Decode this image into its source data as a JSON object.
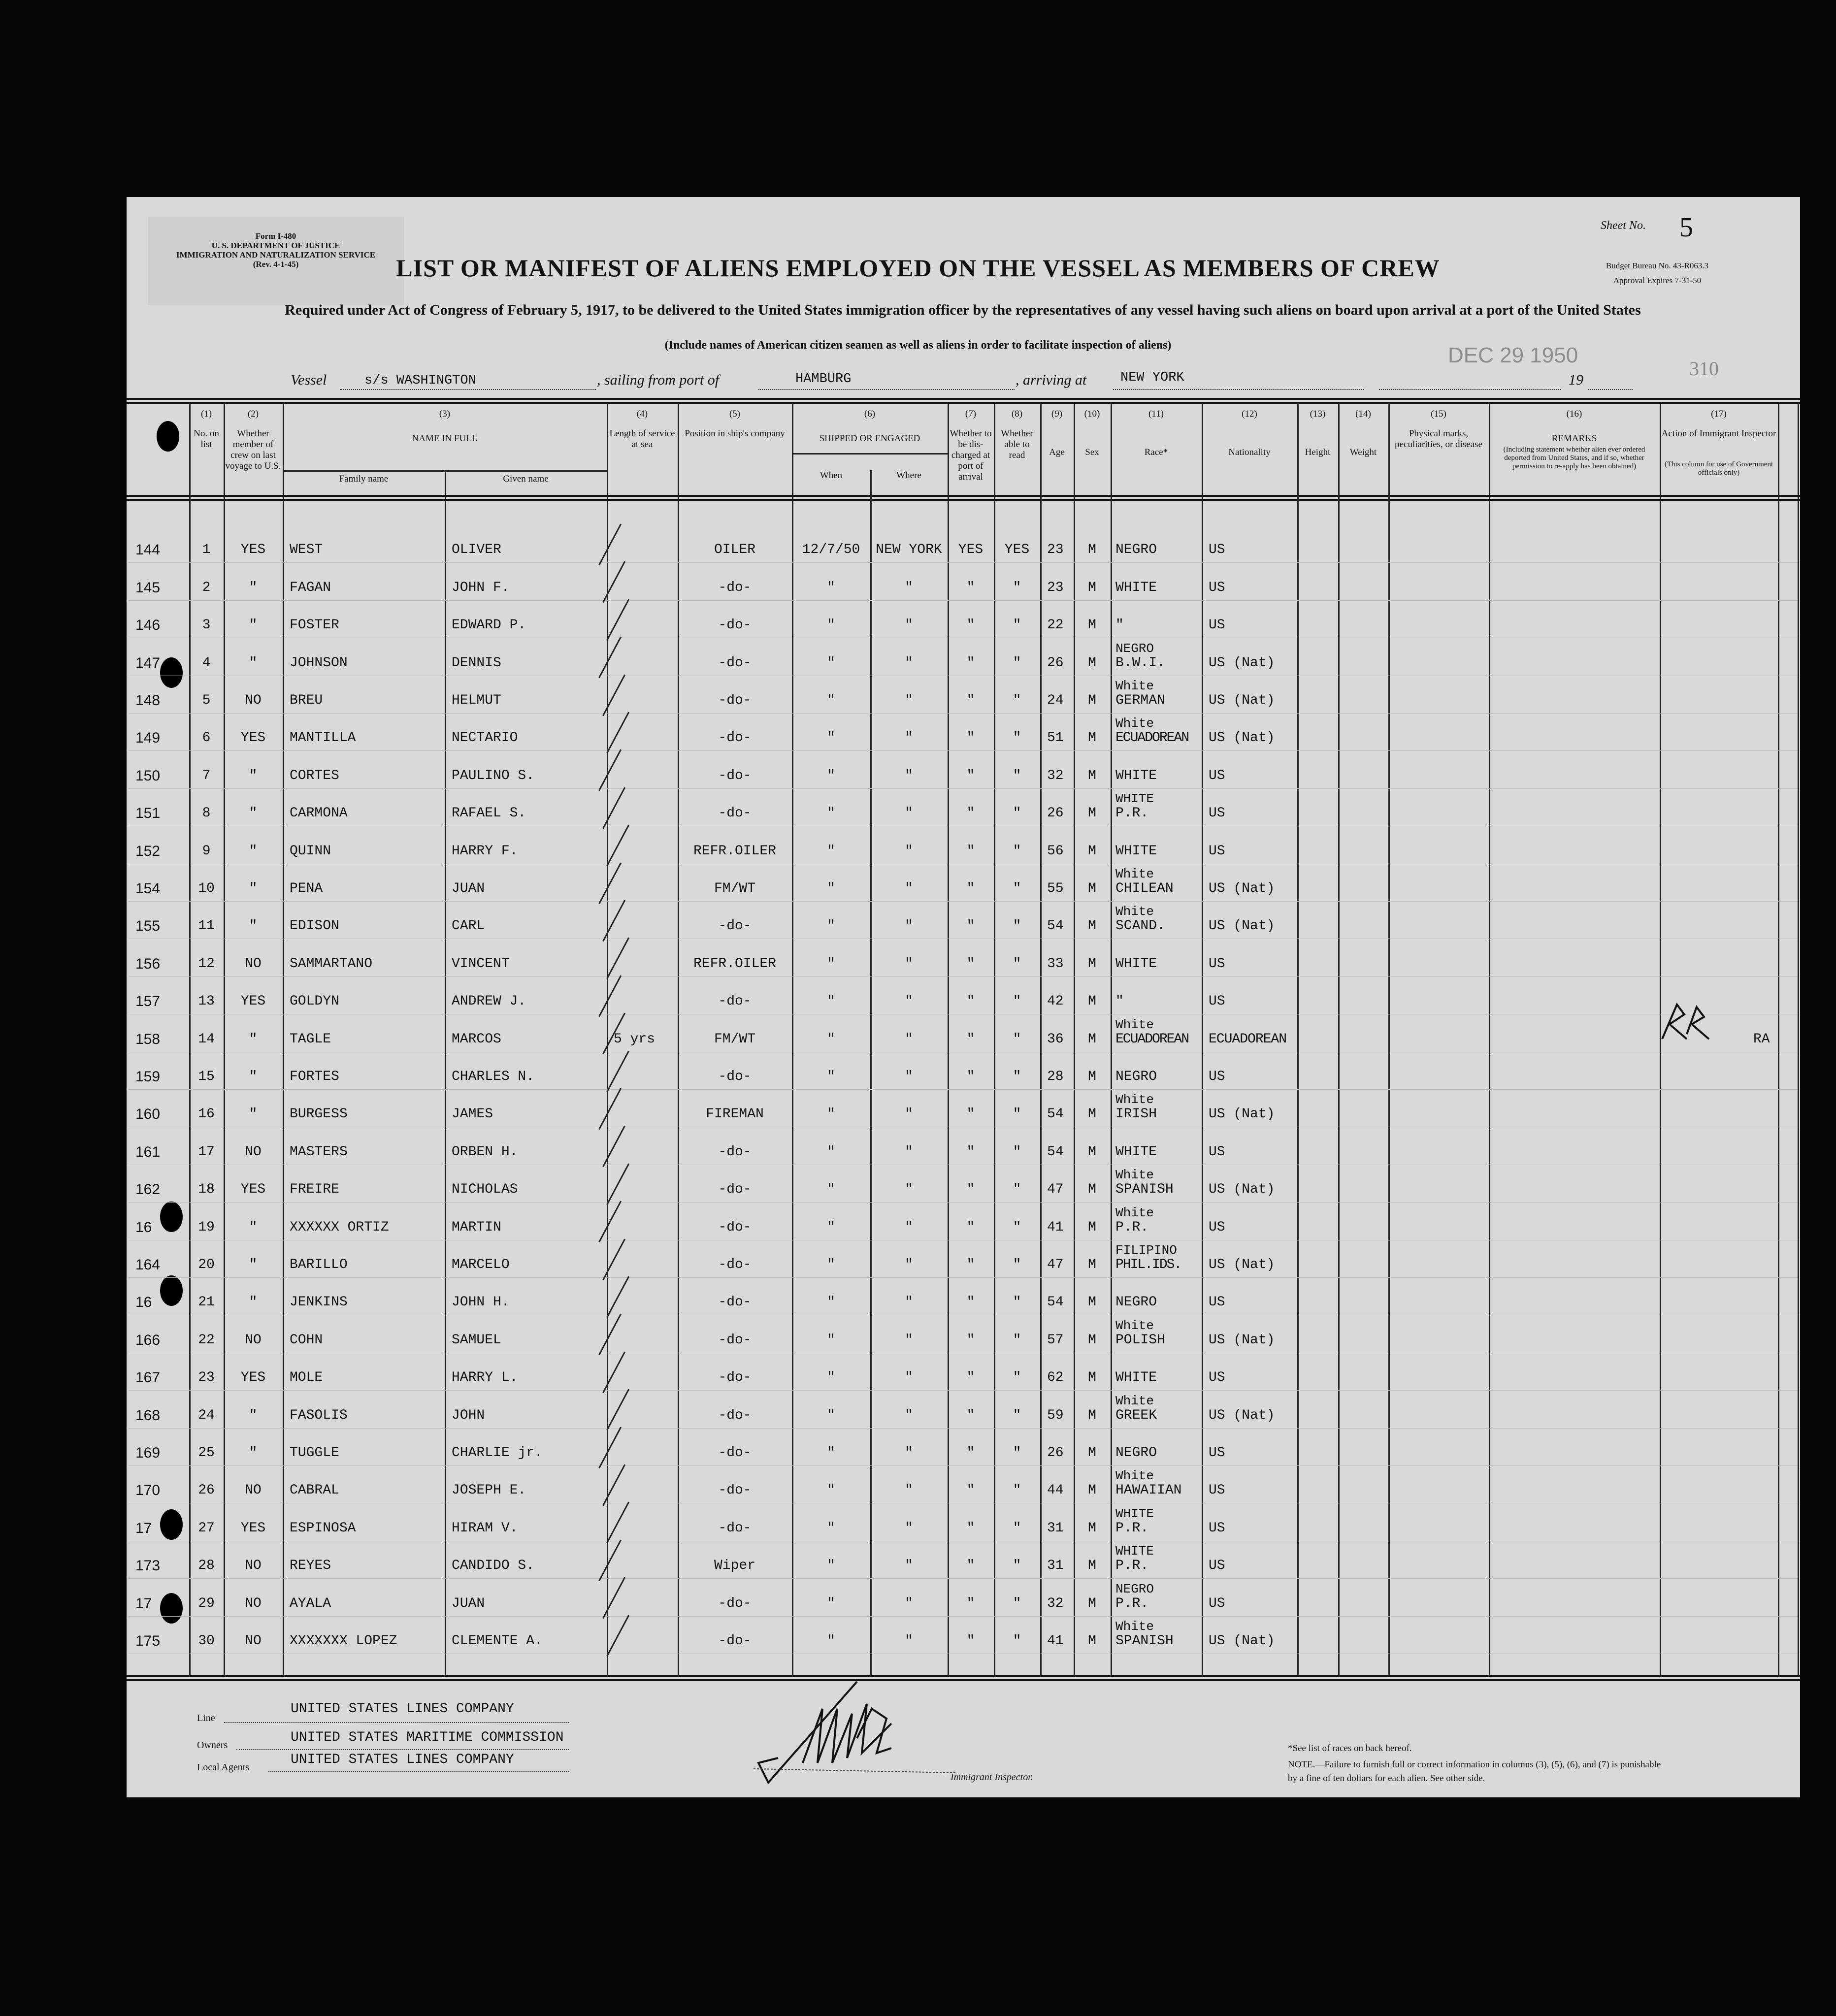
{
  "form": {
    "form_id_lines": [
      "Form I-480",
      "U. S. DEPARTMENT OF JUSTICE",
      "IMMIGRATION AND NATURALIZATION SERVICE",
      "(Rev. 4-1-45)"
    ],
    "title": "LIST OR MANIFEST OF ALIENS EMPLOYED ON THE VESSEL AS MEMBERS OF CREW",
    "subtitle": "Required under Act of Congress of February 5, 1917, to be delivered to the United States immigration officer by the representatives of any vessel having such aliens on board upon arrival at a port of the United States",
    "note": "(Include names of American citizen seamen as well as aliens in order to facilitate inspection of aliens)",
    "sheet_label": "Sheet No.",
    "sheet_no": "5",
    "budget_bureau": "Budget Bureau No. 43-R063.3",
    "approval": "Approval Expires 7-31-50",
    "date_stamp": "DEC 29 1950",
    "stamp_number": "310"
  },
  "vessel": {
    "vessel_label": "Vessel",
    "vessel_name": "s/s WASHINGTON",
    "sailing_label": ", sailing from port of",
    "port_from": "HAMBURG",
    "arriving_label": ", arriving at",
    "port_to": "NEW YORK",
    "year_label": "19"
  },
  "columns": {
    "numbers": [
      "(1)",
      "(2)",
      "(3)",
      "(4)",
      "(5)",
      "(6)",
      "(7)",
      "(8)",
      "(9)",
      "(10)",
      "(11)",
      "(12)",
      "(13)",
      "(14)",
      "(15)",
      "(16)",
      "(17)"
    ],
    "no_on_list": "No. on list",
    "member_last_voyage": "Whether member of crew on last voyage to U.S.",
    "name_in_full": "NAME IN FULL",
    "family_name": "Family name",
    "given_name": "Given name",
    "length_service": "Length of service at sea",
    "position": "Position in ship's company",
    "shipped": "SHIPPED OR ENGAGED",
    "when": "When",
    "where": "Where",
    "discharged": "Whether to be dis-charged at port of arrival",
    "able_read": "Whether able to read",
    "age": "Age",
    "sex": "Sex",
    "race": "Race*",
    "nationality": "Nationality",
    "height": "Height",
    "weight": "Weight",
    "physical": "Physical marks, peculiarities, or disease",
    "remarks_title": "REMARKS",
    "remarks_sub": "(Including statement whether alien ever ordered deported from United States, and if so, whether permission to re-apply has been obtained)",
    "action_title": "Action of Immigrant Inspector",
    "action_sub": "(This column for use of Government officials only)"
  },
  "rows": [
    {
      "sheet": "144",
      "no": "1",
      "member": "YES",
      "family": "WEST",
      "given": "OLIVER",
      "length": "",
      "position": "OILER",
      "when": "12/7/50",
      "where": "NEW YORK",
      "disch": "YES",
      "read": "YES",
      "age": "23",
      "sex": "M",
      "race1": "",
      "race2": "NEGRO",
      "nat": "US",
      "action": ""
    },
    {
      "sheet": "145",
      "no": "2",
      "member": "\"",
      "family": "FAGAN",
      "given": "JOHN F.",
      "length": "",
      "position": "-do-",
      "when": "\"",
      "where": "\"",
      "disch": "\"",
      "read": "\"",
      "age": "23",
      "sex": "M",
      "race1": "",
      "race2": "WHITE",
      "nat": "US",
      "action": ""
    },
    {
      "sheet": "146",
      "no": "3",
      "member": "\"",
      "family": "FOSTER",
      "given": "EDWARD P.",
      "length": "",
      "position": "-do-",
      "when": "\"",
      "where": "\"",
      "disch": "\"",
      "read": "\"",
      "age": "22",
      "sex": "M",
      "race1": "",
      "race2": "\"",
      "nat": "US",
      "action": ""
    },
    {
      "sheet": "147",
      "no": "4",
      "member": "\"",
      "family": "JOHNSON",
      "given": "DENNIS",
      "length": "",
      "position": "-do-",
      "when": "\"",
      "where": "\"",
      "disch": "\"",
      "read": "\"",
      "age": "26",
      "sex": "M",
      "race1": "NEGRO",
      "race2": "B.W.I.",
      "nat": "US (Nat)",
      "action": ""
    },
    {
      "sheet": "148",
      "no": "5",
      "member": "NO",
      "family": "BREU",
      "given": "HELMUT",
      "length": "",
      "position": "-do-",
      "when": "\"",
      "where": "\"",
      "disch": "\"",
      "read": "\"",
      "age": "24",
      "sex": "M",
      "race1": "White",
      "race2": "GERMAN",
      "nat": "US (Nat)",
      "action": ""
    },
    {
      "sheet": "149",
      "no": "6",
      "member": "YES",
      "family": "MANTILLA",
      "given": "NECTARIO",
      "length": "",
      "position": "-do-",
      "when": "\"",
      "where": "\"",
      "disch": "\"",
      "read": "\"",
      "age": "51",
      "sex": "M",
      "race1": "White",
      "race2": "ECUADOREAN",
      "nat": "US (Nat)",
      "action": ""
    },
    {
      "sheet": "150",
      "no": "7",
      "member": "\"",
      "family": "CORTES",
      "given": "PAULINO S.",
      "length": "",
      "position": "-do-",
      "when": "\"",
      "where": "\"",
      "disch": "\"",
      "read": "\"",
      "age": "32",
      "sex": "M",
      "race1": "",
      "race2": "WHITE",
      "nat": "US",
      "action": ""
    },
    {
      "sheet": "151",
      "no": "8",
      "member": "\"",
      "family": "CARMONA",
      "given": "RAFAEL S.",
      "length": "",
      "position": "-do-",
      "when": "\"",
      "where": "\"",
      "disch": "\"",
      "read": "\"",
      "age": "26",
      "sex": "M",
      "race1": "WHITE",
      "race2": "P.R.",
      "nat": "US",
      "action": ""
    },
    {
      "sheet": "152",
      "no": "9",
      "member": "\"",
      "family": "QUINN",
      "given": "HARRY F.",
      "length": "",
      "position": "REFR.OILER",
      "when": "\"",
      "where": "\"",
      "disch": "\"",
      "read": "\"",
      "age": "56",
      "sex": "M",
      "race1": "",
      "race2": "WHITE",
      "nat": "US",
      "action": ""
    },
    {
      "sheet": "154",
      "no": "10",
      "member": "\"",
      "family": "PENA",
      "given": "JUAN",
      "length": "",
      "position": "FM/WT",
      "when": "\"",
      "where": "\"",
      "disch": "\"",
      "read": "\"",
      "age": "55",
      "sex": "M",
      "race1": "White",
      "race2": "CHILEAN",
      "nat": "US (Nat)",
      "action": ""
    },
    {
      "sheet": "155",
      "no": "11",
      "member": "\"",
      "family": "EDISON",
      "given": "CARL",
      "length": "",
      "position": "-do-",
      "when": "\"",
      "where": "\"",
      "disch": "\"",
      "read": "\"",
      "age": "54",
      "sex": "M",
      "race1": "White",
      "race2": "SCAND.",
      "nat": "US (Nat)",
      "action": ""
    },
    {
      "sheet": "156",
      "no": "12",
      "member": "NO",
      "family": "SAMMARTANO",
      "given": "VINCENT",
      "length": "",
      "position": "REFR.OILER",
      "when": "\"",
      "where": "\"",
      "disch": "\"",
      "read": "\"",
      "age": "33",
      "sex": "M",
      "race1": "",
      "race2": "WHITE",
      "nat": "US",
      "action": ""
    },
    {
      "sheet": "157",
      "no": "13",
      "member": "YES",
      "family": "GOLDYN",
      "given": "ANDREW J.",
      "length": "",
      "position": "-do-",
      "when": "\"",
      "where": "\"",
      "disch": "\"",
      "read": "\"",
      "age": "42",
      "sex": "M",
      "race1": "",
      "race2": "\"",
      "nat": "US",
      "action": ""
    },
    {
      "sheet": "158",
      "no": "14",
      "member": "\"",
      "family": "TAGLE",
      "given": "MARCOS",
      "length": "5 yrs",
      "position": "FM/WT",
      "when": "\"",
      "where": "\"",
      "disch": "\"",
      "read": "\"",
      "age": "36",
      "sex": "M",
      "race1": "White",
      "race2": "ECUADOREAN",
      "nat": "ECUADOREAN",
      "action": "RA"
    },
    {
      "sheet": "159",
      "no": "15",
      "member": "\"",
      "family": "FORTES",
      "given": "CHARLES N.",
      "length": "",
      "position": "-do-",
      "when": "\"",
      "where": "\"",
      "disch": "\"",
      "read": "\"",
      "age": "28",
      "sex": "M",
      "race1": "",
      "race2": "NEGRO",
      "nat": "US",
      "action": ""
    },
    {
      "sheet": "160",
      "no": "16",
      "member": "\"",
      "family": "BURGESS",
      "given": "JAMES",
      "length": "",
      "position": "FIREMAN",
      "when": "\"",
      "where": "\"",
      "disch": "\"",
      "read": "\"",
      "age": "54",
      "sex": "M",
      "race1": "White",
      "race2": "IRISH",
      "nat": "US (Nat)",
      "action": ""
    },
    {
      "sheet": "161",
      "no": "17",
      "member": "NO",
      "family": "MASTERS",
      "given": "ORBEN H.",
      "length": "",
      "position": "-do-",
      "when": "\"",
      "where": "\"",
      "disch": "\"",
      "read": "\"",
      "age": "54",
      "sex": "M",
      "race1": "",
      "race2": "WHITE",
      "nat": "US",
      "action": ""
    },
    {
      "sheet": "162",
      "no": "18",
      "member": "YES",
      "family": "FREIRE",
      "given": "NICHOLAS",
      "length": "",
      "position": "-do-",
      "when": "\"",
      "where": "\"",
      "disch": "\"",
      "read": "\"",
      "age": "47",
      "sex": "M",
      "race1": "White",
      "race2": "SPANISH",
      "nat": "US (Nat)",
      "action": ""
    },
    {
      "sheet": "16",
      "no": "19",
      "member": "\"",
      "family": "XXXXXX ORTIZ",
      "given": "MARTIN",
      "length": "",
      "position": "-do-",
      "when": "\"",
      "where": "\"",
      "disch": "\"",
      "read": "\"",
      "age": "41",
      "sex": "M",
      "race1": "White",
      "race2": "P.R.",
      "nat": "US",
      "action": ""
    },
    {
      "sheet": "164",
      "no": "20",
      "member": "\"",
      "family": "BARILLO",
      "given": "MARCELO",
      "length": "",
      "position": "-do-",
      "when": "\"",
      "where": "\"",
      "disch": "\"",
      "read": "\"",
      "age": "47",
      "sex": "M",
      "race1": "FILIPINO",
      "race2": "PHIL.IDS.",
      "nat": "US (Nat)",
      "action": ""
    },
    {
      "sheet": "16",
      "no": "21",
      "member": "\"",
      "family": "JENKINS",
      "given": "JOHN H.",
      "length": "",
      "position": "-do-",
      "when": "\"",
      "where": "\"",
      "disch": "\"",
      "read": "\"",
      "age": "54",
      "sex": "M",
      "race1": "",
      "race2": "NEGRO",
      "nat": "US",
      "action": ""
    },
    {
      "sheet": "166",
      "no": "22",
      "member": "NO",
      "family": "COHN",
      "given": "SAMUEL",
      "length": "",
      "position": "-do-",
      "when": "\"",
      "where": "\"",
      "disch": "\"",
      "read": "\"",
      "age": "57",
      "sex": "M",
      "race1": "White",
      "race2": "POLISH",
      "nat": "US (Nat)",
      "action": ""
    },
    {
      "sheet": "167",
      "no": "23",
      "member": "YES",
      "family": "MOLE",
      "given": "HARRY L.",
      "length": "",
      "position": "-do-",
      "when": "\"",
      "where": "\"",
      "disch": "\"",
      "read": "\"",
      "age": "62",
      "sex": "M",
      "race1": "",
      "race2": "WHITE",
      "nat": "US",
      "action": ""
    },
    {
      "sheet": "168",
      "no": "24",
      "member": "\"",
      "family": "FASOLIS",
      "given": "JOHN",
      "length": "",
      "position": "-do-",
      "when": "\"",
      "where": "\"",
      "disch": "\"",
      "read": "\"",
      "age": "59",
      "sex": "M",
      "race1": "White",
      "race2": "GREEK",
      "nat": "US (Nat)",
      "action": ""
    },
    {
      "sheet": "169",
      "no": "25",
      "member": "\"",
      "family": "TUGGLE",
      "given": "CHARLIE jr.",
      "length": "",
      "position": "-do-",
      "when": "\"",
      "where": "\"",
      "disch": "\"",
      "read": "\"",
      "age": "26",
      "sex": "M",
      "race1": "",
      "race2": "NEGRO",
      "nat": "US",
      "action": ""
    },
    {
      "sheet": "170",
      "no": "26",
      "member": "NO",
      "family": "CABRAL",
      "given": "JOSEPH E.",
      "length": "",
      "position": "-do-",
      "when": "\"",
      "where": "\"",
      "disch": "\"",
      "read": "\"",
      "age": "44",
      "sex": "M",
      "race1": "White",
      "race2": "HAWAIIAN",
      "nat": "US",
      "action": ""
    },
    {
      "sheet": "17",
      "no": "27",
      "member": "YES",
      "family": "ESPINOSA",
      "given": "HIRAM V.",
      "length": "",
      "position": "-do-",
      "when": "\"",
      "where": "\"",
      "disch": "\"",
      "read": "\"",
      "age": "31",
      "sex": "M",
      "race1": "WHITE",
      "race2": "P.R.",
      "nat": "US",
      "action": ""
    },
    {
      "sheet": "173",
      "no": "28",
      "member": "NO",
      "family": "REYES",
      "given": "CANDIDO S.",
      "length": "",
      "position": "Wiper",
      "when": "\"",
      "where": "\"",
      "disch": "\"",
      "read": "\"",
      "age": "31",
      "sex": "M",
      "race1": "WHITE",
      "race2": "P.R.",
      "nat": "US",
      "action": ""
    },
    {
      "sheet": "17",
      "no": "29",
      "member": "NO",
      "family": "AYALA",
      "given": "JUAN",
      "length": "",
      "position": "-do-",
      "when": "\"",
      "where": "\"",
      "disch": "\"",
      "read": "\"",
      "age": "32",
      "sex": "M",
      "race1": "NEGRO",
      "race2": "P.R.",
      "nat": "US",
      "action": ""
    },
    {
      "sheet": "175",
      "no": "30",
      "member": "NO",
      "family": "XXXXXXX LOPEZ",
      "given": "CLEMENTE A.",
      "length": "",
      "position": "-do-",
      "when": "\"",
      "where": "\"",
      "disch": "\"",
      "read": "\"",
      "age": "41",
      "sex": "M",
      "race1": "White",
      "race2": "SPANISH",
      "nat": "US (Nat)",
      "action": ""
    }
  ],
  "footer": {
    "line_label": "Line",
    "line_value": "UNITED STATES LINES COMPANY",
    "owners_label": "Owners",
    "owners_value": "UNITED STATES MARITIME COMMISSION",
    "agents_label": "Local Agents",
    "agents_value": "UNITED STATES LINES COMPANY",
    "inspector_label": "Immigrant Inspector.",
    "races_note": "*See list of races on back hereof.",
    "note": "NOTE.—Failure to furnish full or correct information in columns (3), (5), (6), and (7) is punishable by a fine of ten dollars for each alien.  See other side."
  }
}
